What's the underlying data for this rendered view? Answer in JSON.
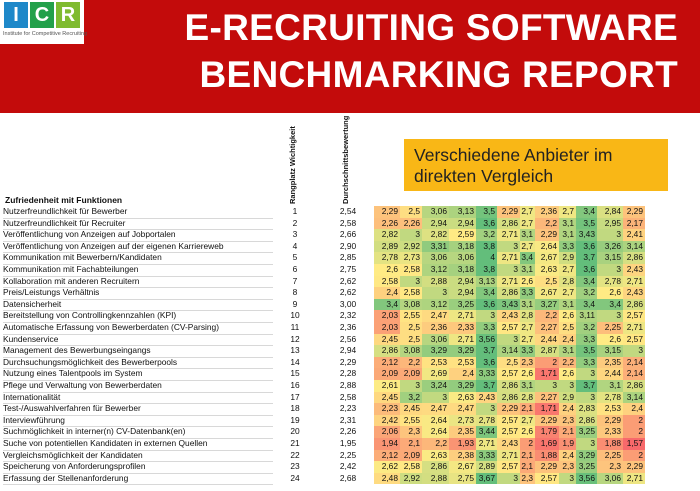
{
  "header": {
    "logo_text": [
      "I",
      "C",
      "R"
    ],
    "logo_subtitle": "Institute for Competitive Recruiting",
    "title_line1": "E-RECRUITING SOFTWARE",
    "title_line2": "BENCHMARKING REPORT"
  },
  "callout": {
    "line1": "Verschiedene Anbieter im",
    "line2": "direkten Vergleich"
  },
  "table": {
    "section_title": "Zufriedenheit mit Funktionen",
    "col_rank": "Rangplatz Wichtigkeit",
    "col_avg": "Durchschnittsbewertung",
    "rows": [
      {
        "label": "Nutzerfreundlichkeit für Bewerber",
        "rank": "1",
        "avg": "2,54",
        "values": [
          "2,29",
          "2,5",
          "3,06",
          "3,13",
          "3,5",
          "2,29",
          "2,7",
          "2,36",
          "2,7",
          "3,4",
          "2,84",
          "2,29"
        ]
      },
      {
        "label": "Nutzerfreundlichkeit für Recruiter",
        "rank": "2",
        "avg": "2,58",
        "values": [
          "2,26",
          "2,26",
          "2,94",
          "2,94",
          "3,6",
          "2,86",
          "2,7",
          "2,2",
          "3,1",
          "3,5",
          "2,95",
          "2,17"
        ]
      },
      {
        "label": "Veröffentlichung von Anzeigen auf Jobportalen",
        "rank": "3",
        "avg": "2,66",
        "values": [
          "2,82",
          "3",
          "2,82",
          "2,59",
          "3,2",
          "2,71",
          "3,1",
          "2,29",
          "3,1",
          "3,43",
          "3",
          "2,41"
        ]
      },
      {
        "label": "Veröffentlichung von Anzeigen auf der eigenen Karriereweb",
        "rank": "4",
        "avg": "2,90",
        "values": [
          "2,89",
          "2,92",
          "3,31",
          "3,18",
          "3,8",
          "3",
          "2,7",
          "2,64",
          "3,3",
          "3,6",
          "3,26",
          "3,14"
        ]
      },
      {
        "label": "Kommunikation mit Bewerbern/Kandidaten",
        "rank": "5",
        "avg": "2,85",
        "values": [
          "2,78",
          "2,73",
          "3,06",
          "3,06",
          "4",
          "2,71",
          "3,4",
          "2,67",
          "2,9",
          "3,7",
          "3,15",
          "2,86"
        ]
      },
      {
        "label": "Kommunikation mit Fachabteilungen",
        "rank": "6",
        "avg": "2,75",
        "values": [
          "2,6",
          "2,58",
          "3,12",
          "3,18",
          "3,8",
          "3",
          "3,1",
          "2,63",
          "2,7",
          "3,6",
          "3",
          "2,43"
        ]
      },
      {
        "label": "Kollaboration mit anderen Recruitern",
        "rank": "7",
        "avg": "2,62",
        "values": [
          "2,58",
          "3",
          "2,88",
          "2,94",
          "3,13",
          "2,71",
          "2,6",
          "2,5",
          "2,8",
          "3,4",
          "2,78",
          "2,71"
        ]
      },
      {
        "label": "Preis/Leistungs Verhältnis",
        "rank": "8",
        "avg": "2,62",
        "values": [
          "2,4",
          "2,58",
          "3",
          "2,94",
          "3,4",
          "2,86",
          "3,3",
          "2,67",
          "2,7",
          "3,2",
          "2,6",
          "2,43"
        ]
      },
      {
        "label": "Datensicherheit",
        "rank": "9",
        "avg": "3,00",
        "values": [
          "3,4",
          "3,08",
          "3,12",
          "3,25",
          "3,6",
          "3,43",
          "3,1",
          "3,27",
          "3,1",
          "3,4",
          "3,4",
          "2,86"
        ]
      },
      {
        "label": "Bereitstellung von Controllingkennzahlen (KPI)",
        "rank": "10",
        "avg": "2,32",
        "values": [
          "2,03",
          "2,55",
          "2,47",
          "2,71",
          "3",
          "2,43",
          "2,8",
          "2,2",
          "2,6",
          "3,11",
          "3",
          "2,57"
        ]
      },
      {
        "label": "Automatische Erfassung von Bewerberdaten (CV-Parsing)",
        "rank": "11",
        "avg": "2,36",
        "values": [
          "2,03",
          "2,5",
          "2,36",
          "2,33",
          "3,3",
          "2,57",
          "2,7",
          "2,27",
          "2,5",
          "3,2",
          "2,25",
          "2,71"
        ]
      },
      {
        "label": "Kundenservice",
        "rank": "12",
        "avg": "2,56",
        "values": [
          "2,45",
          "2,5",
          "3,06",
          "2,71",
          "3,56",
          "3",
          "2,7",
          "2,44",
          "2,4",
          "3,3",
          "2,6",
          "2,57"
        ]
      },
      {
        "label": "Management des Bewerbungseingangs",
        "rank": "13",
        "avg": "2,94",
        "values": [
          "2,86",
          "3,08",
          "3,29",
          "3,29",
          "3,7",
          "3,14",
          "3,3",
          "2,87",
          "3,1",
          "3,5",
          "3,15",
          "3"
        ]
      },
      {
        "label": "Durchsuchungsmöglichkeit des Bewerberpools",
        "rank": "14",
        "avg": "2,29",
        "values": [
          "2,12",
          "2,2",
          "2,53",
          "2,53",
          "3,6",
          "2,5",
          "2,3",
          "2",
          "2,2",
          "3,3",
          "2,35",
          "2,14"
        ]
      },
      {
        "label": "Nutzung eines Talentpools im System",
        "rank": "15",
        "avg": "2,28",
        "values": [
          "2,09",
          "2,09",
          "2,69",
          "2,4",
          "3,33",
          "2,57",
          "2,6",
          "1,71",
          "2,6",
          "3",
          "2,44",
          "2,14"
        ]
      },
      {
        "label": "Pflege und Verwaltung von Bewerberdaten",
        "rank": "16",
        "avg": "2,88",
        "values": [
          "2,61",
          "3",
          "3,24",
          "3,29",
          "3,7",
          "2,86",
          "3,1",
          "3",
          "3",
          "3,7",
          "3,1",
          "2,86"
        ]
      },
      {
        "label": "Internationalität",
        "rank": "17",
        "avg": "2,58",
        "values": [
          "2,45",
          "3,2",
          "3",
          "2,63",
          "2,43",
          "2,86",
          "2,8",
          "2,27",
          "2,9",
          "3",
          "2,78",
          "3,14"
        ]
      },
      {
        "label": "Test-/Auswahlverfahren für Bewerber",
        "rank": "18",
        "avg": "2,23",
        "values": [
          "2,23",
          "2,45",
          "2,47",
          "2,47",
          "3",
          "2,29",
          "2,1",
          "1,71",
          "2,4",
          "2,83",
          "2,53",
          "2,4"
        ]
      },
      {
        "label": "Interviewführung",
        "rank": "19",
        "avg": "2,31",
        "values": [
          "2,42",
          "2,55",
          "2,64",
          "2,73",
          "2,78",
          "2,57",
          "2,7",
          "2,29",
          "2,3",
          "2,86",
          "2,29",
          "2"
        ]
      },
      {
        "label": "Suchmöglichkeit in interner(n) CV-Datenbank(en)",
        "rank": "20",
        "avg": "2,26",
        "values": [
          "2,06",
          "2,3",
          "2,64",
          "2,35",
          "3,44",
          "2,57",
          "2,6",
          "1,79",
          "2,1",
          "3,25",
          "2,33",
          "2"
        ]
      },
      {
        "label": "Suche von potentiellen Kandidaten in externen Quellen",
        "rank": "21",
        "avg": "1,95",
        "values": [
          "1,94",
          "2,1",
          "2,2",
          "1,93",
          "2,71",
          "2,43",
          "2",
          "1,69",
          "1,9",
          "3",
          "1,88",
          "1,57"
        ]
      },
      {
        "label": "Vergleichsmöglichkeit der Kandidaten",
        "rank": "22",
        "avg": "2,25",
        "values": [
          "2,12",
          "2,09",
          "2,63",
          "2,38",
          "3,33",
          "2,71",
          "2,1",
          "1,88",
          "2,4",
          "3,29",
          "2,25",
          "2"
        ]
      },
      {
        "label": "Speicherung von Anforderungsprofilen",
        "rank": "23",
        "avg": "2,42",
        "values": [
          "2,62",
          "2,58",
          "2,86",
          "2,67",
          "2,89",
          "2,57",
          "2,1",
          "2,29",
          "2,3",
          "3,25",
          "2,3",
          "2,29"
        ]
      },
      {
        "label": "Erfassung der Stellenanforderung",
        "rank": "24",
        "avg": "2,68",
        "values": [
          "2,48",
          "2,92",
          "2,88",
          "2,75",
          "3,67",
          "3",
          "2,3",
          "2,57",
          "3",
          "3,56",
          "3,06",
          "2,71"
        ]
      }
    ]
  }
}
